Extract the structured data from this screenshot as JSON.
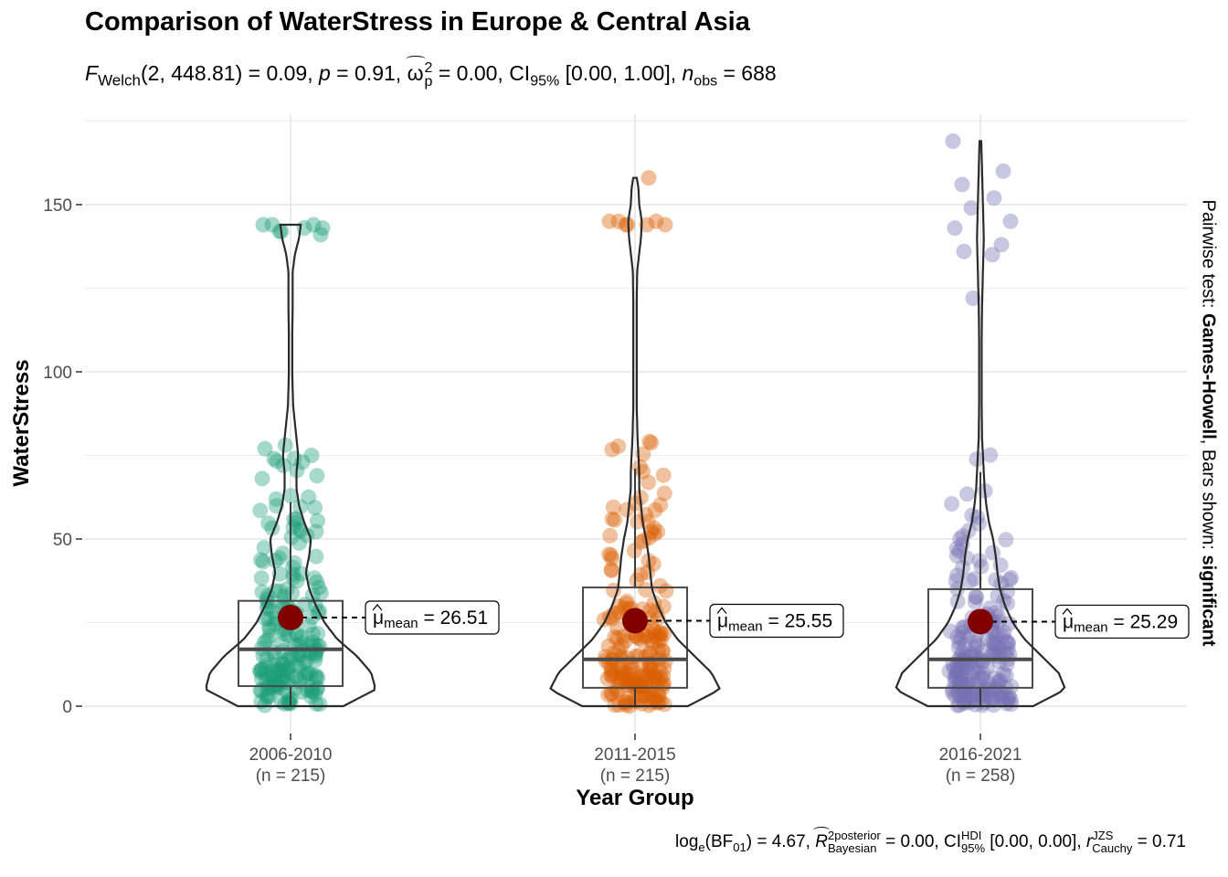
{
  "title": "Comparison of WaterStress in Europe & Central Asia",
  "subtitle": {
    "f": "F",
    "welch": "Welch",
    "args": "(2, 448.81) = 0.09, ",
    "p": "p",
    "pval": " = 0.91, ",
    "omega": "ω",
    "omega_sup": "2",
    "omega_sub": "p",
    "omega_val": " = 0.00, CI",
    "ci_sub": "95%",
    "ci_val": " [0.00, 1.00], ",
    "n": "n",
    "n_sub": "obs",
    "n_val": " = 688"
  },
  "caption": {
    "log": "log",
    "e": "e",
    "bf": "(BF",
    "bf_sub": "01",
    "bf_val": ") = 4.67, ",
    "r": "R",
    "r_sup": "2",
    "posterior": "posterior",
    "bayesian": "Bayesian",
    "r_val": " = 0.00, CI",
    "hdi": "HDI",
    "ci95": "95%",
    "ci_val": " [0.00, 0.00], ",
    "rc": "r",
    "jzs": "JZS",
    "cauchy": "Cauchy",
    "rc_val": " = 0.71"
  },
  "side_label": {
    "prefix": "Pairwise test: ",
    "test": "Games-Howell",
    "middle": ", Bars shown: ",
    "shown": "significant"
  },
  "chart_data": {
    "type": "violin-box-scatter",
    "xlabel": "Year Group",
    "ylabel": "WaterStress",
    "ylim": [
      0,
      175
    ],
    "yticks": [
      0,
      50,
      100,
      150
    ],
    "grid": true,
    "groups": [
      {
        "name": "2006-2010",
        "n_label": "(n = 215)",
        "color": "#1b9e77",
        "mean": 26.51,
        "mean_label": "= 26.51",
        "box": {
          "q1": 6,
          "median": 17,
          "q3": 31.5,
          "whisker_low": 0,
          "whisker_high": 61
        },
        "max": 144,
        "outliers": [
          72,
          73,
          74,
          75,
          77,
          141,
          142,
          143,
          144,
          144,
          144,
          143,
          142
        ],
        "density": [
          [
            0,
            0.62
          ],
          [
            5,
            1.0
          ],
          [
            10,
            0.95
          ],
          [
            15,
            0.78
          ],
          [
            20,
            0.55
          ],
          [
            25,
            0.4
          ],
          [
            30,
            0.3
          ],
          [
            35,
            0.22
          ],
          [
            40,
            0.18
          ],
          [
            45,
            0.22
          ],
          [
            50,
            0.24
          ],
          [
            55,
            0.16
          ],
          [
            60,
            0.1
          ],
          [
            65,
            0.07
          ],
          [
            70,
            0.07
          ],
          [
            75,
            0.09
          ],
          [
            80,
            0.07
          ],
          [
            85,
            0.05
          ],
          [
            90,
            0.03
          ],
          [
            100,
            0.02
          ],
          [
            110,
            0.02
          ],
          [
            120,
            0.025
          ],
          [
            130,
            0.025
          ],
          [
            135,
            0.05
          ],
          [
            140,
            0.1
          ],
          [
            144,
            0.12
          ]
        ],
        "max_width_units": 93
      },
      {
        "name": "2011-2015",
        "n_label": "(n = 215)",
        "color": "#d95f02",
        "mean": 25.55,
        "mean_label": "= 25.55",
        "box": {
          "q1": 5.5,
          "median": 14,
          "q3": 35.5,
          "whisker_low": 0,
          "whisker_high": 71
        },
        "max": 158,
        "outliers": [
          144,
          144,
          145,
          145,
          145,
          144,
          144,
          158
        ],
        "density": [
          [
            0,
            0.62
          ],
          [
            5,
            1.0
          ],
          [
            10,
            0.9
          ],
          [
            15,
            0.7
          ],
          [
            20,
            0.5
          ],
          [
            25,
            0.36
          ],
          [
            30,
            0.27
          ],
          [
            35,
            0.2
          ],
          [
            40,
            0.18
          ],
          [
            45,
            0.16
          ],
          [
            50,
            0.13
          ],
          [
            55,
            0.09
          ],
          [
            60,
            0.07
          ],
          [
            65,
            0.05
          ],
          [
            70,
            0.05
          ],
          [
            75,
            0.04
          ],
          [
            80,
            0.03
          ],
          [
            90,
            0.02
          ],
          [
            100,
            0.02
          ],
          [
            110,
            0.02
          ],
          [
            120,
            0.02
          ],
          [
            130,
            0.025
          ],
          [
            140,
            0.07
          ],
          [
            145,
            0.08
          ],
          [
            150,
            0.05
          ],
          [
            155,
            0.04
          ],
          [
            158,
            0.02
          ]
        ],
        "max_width_units": 93
      },
      {
        "name": "2016-2021",
        "n_label": "(n = 258)",
        "color": "#7570b3",
        "mean": 25.29,
        "mean_label": "= 25.29",
        "box": {
          "q1": 5.5,
          "median": 14,
          "q3": 35,
          "whisker_low": 0,
          "whisker_high": 70
        },
        "max": 169,
        "outliers": [
          122,
          135,
          136,
          138,
          143,
          145,
          149,
          152,
          156,
          160,
          169
        ],
        "density": [
          [
            0,
            0.62
          ],
          [
            5,
            1.0
          ],
          [
            10,
            0.92
          ],
          [
            15,
            0.72
          ],
          [
            20,
            0.52
          ],
          [
            25,
            0.38
          ],
          [
            30,
            0.29
          ],
          [
            35,
            0.23
          ],
          [
            40,
            0.2
          ],
          [
            45,
            0.18
          ],
          [
            50,
            0.15
          ],
          [
            55,
            0.1
          ],
          [
            60,
            0.07
          ],
          [
            65,
            0.05
          ],
          [
            70,
            0.04
          ],
          [
            75,
            0.03
          ],
          [
            80,
            0.02
          ],
          [
            90,
            0.015
          ],
          [
            100,
            0.015
          ],
          [
            110,
            0.015
          ],
          [
            120,
            0.02
          ],
          [
            130,
            0.03
          ],
          [
            140,
            0.04
          ],
          [
            150,
            0.03
          ],
          [
            160,
            0.02
          ],
          [
            169,
            0.01
          ]
        ],
        "max_width_units": 93
      }
    ],
    "mean_color": "#800000",
    "mean_symbol": "μ",
    "mean_sub": "mean"
  }
}
